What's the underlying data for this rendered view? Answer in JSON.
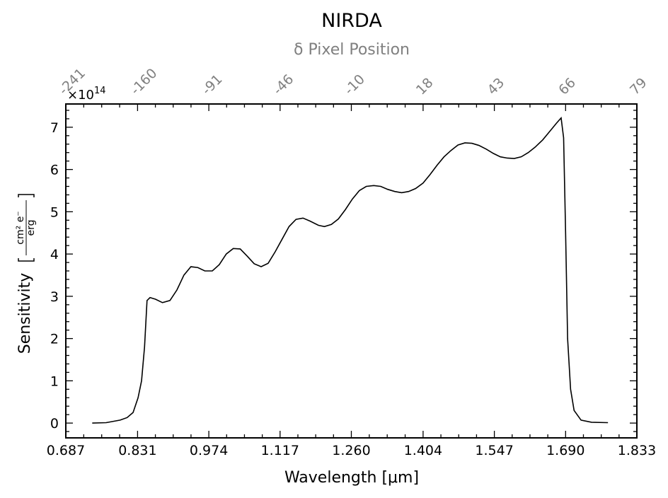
{
  "chart_data": {
    "type": "line",
    "title": "NIRDA",
    "top_axis_label": "δ Pixel Position",
    "x_label": "Wavelength [μm]",
    "y_label": "Sensitivity",
    "y_unit_numerator": "cm² e⁻",
    "y_unit_denominator": "erg",
    "y_scale_base": "×10",
    "y_scale_exponent": "14",
    "xlim": [
      0.687,
      1.833
    ],
    "ylim": [
      -0.35,
      7.55
    ],
    "xticks": [
      0.687,
      0.831,
      0.974,
      1.117,
      {
        "value": 1.26,
        "label": "1.260"
      },
      1.404,
      1.547,
      {
        "value": 1.69,
        "label": "1.690"
      },
      1.833
    ],
    "yticks": [
      0,
      1,
      2,
      3,
      4,
      5,
      6,
      7
    ],
    "top_ticks": [
      {
        "value": 0.687,
        "label": "-241"
      },
      {
        "value": 0.831,
        "label": "-160"
      },
      {
        "value": 0.974,
        "label": "-91"
      },
      {
        "value": 1.117,
        "label": "-46"
      },
      {
        "value": 1.26,
        "label": "-10"
      },
      {
        "value": 1.404,
        "label": "18"
      },
      {
        "value": 1.547,
        "label": "43"
      },
      {
        "value": 1.69,
        "label": "66"
      },
      {
        "value": 1.833,
        "label": "79"
      }
    ],
    "series": [
      {
        "color": "#000000",
        "x": [
          0.74,
          0.768,
          0.796,
          0.81,
          0.822,
          0.832,
          0.839,
          0.845,
          0.85,
          0.856,
          0.867,
          0.881,
          0.896,
          0.91,
          0.924,
          0.938,
          0.952,
          0.966,
          0.981,
          0.995,
          1.009,
          1.023,
          1.037,
          1.051,
          1.065,
          1.079,
          1.093,
          1.107,
          1.121,
          1.135,
          1.149,
          1.163,
          1.177,
          1.194,
          1.206,
          1.22,
          1.234,
          1.248,
          1.262,
          1.276,
          1.29,
          1.305,
          1.319,
          1.333,
          1.347,
          1.361,
          1.375,
          1.389,
          1.404,
          1.418,
          1.432,
          1.446,
          1.46,
          1.474,
          1.488,
          1.502,
          1.516,
          1.531,
          1.545,
          1.559,
          1.573,
          1.587,
          1.601,
          1.615,
          1.629,
          1.644,
          1.658,
          1.672,
          1.681,
          1.686,
          1.69,
          1.694,
          1.7,
          1.707,
          1.721,
          1.742,
          1.775
        ],
        "values": [
          0,
          0.01,
          0.07,
          0.13,
          0.25,
          0.6,
          1.0,
          1.8,
          2.9,
          2.97,
          2.93,
          2.85,
          2.9,
          3.15,
          3.5,
          3.7,
          3.68,
          3.6,
          3.6,
          3.75,
          4.0,
          4.13,
          4.12,
          3.95,
          3.77,
          3.7,
          3.78,
          4.05,
          4.35,
          4.65,
          4.82,
          4.85,
          4.78,
          4.68,
          4.65,
          4.7,
          4.83,
          5.05,
          5.3,
          5.5,
          5.6,
          5.62,
          5.6,
          5.53,
          5.48,
          5.45,
          5.48,
          5.55,
          5.68,
          5.88,
          6.1,
          6.3,
          6.45,
          6.58,
          6.63,
          6.62,
          6.57,
          6.48,
          6.38,
          6.3,
          6.27,
          6.26,
          6.3,
          6.4,
          6.53,
          6.7,
          6.9,
          7.1,
          7.22,
          6.75,
          4.5,
          2.0,
          0.8,
          0.3,
          0.07,
          0.02,
          0.01
        ]
      }
    ]
  }
}
